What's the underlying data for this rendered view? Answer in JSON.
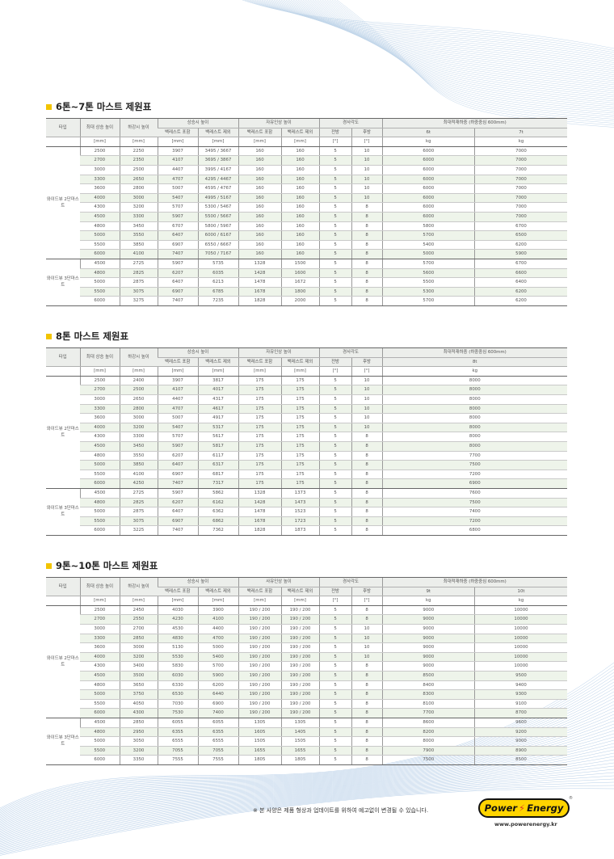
{
  "header_labels": {
    "type": "타입",
    "max_lift": "최대 상승 높이",
    "lowered": "하강시 높이",
    "raised": "상승시 높이",
    "free_lift": "자유인상 높이",
    "tilt": "경사각도",
    "load": "최대적재하중 (하중중심 600mm)",
    "with_backrest": "백레스트 포함",
    "without_backrest": "백레스트 제외",
    "front": "전방",
    "rear": "후방",
    "unit_mm": "[mm]",
    "unit_deg": "[°]",
    "unit_kg": "kg"
  },
  "tables": [
    {
      "title": "6톤~7톤 마스트 제원표",
      "free_lift_label": "자유인상 높이",
      "load_columns": [
        "6t",
        "7t"
      ],
      "groups": [
        {
          "type": "와이드뷰 2단마스트",
          "rows": [
            [
              "2500",
              "2250",
              "3907",
              "3495 / 3667",
              "160",
              "160",
              "5",
              "10",
              "6000",
              "7000"
            ],
            [
              "2700",
              "2350",
              "4107",
              "3695 / 3867",
              "160",
              "160",
              "5",
              "10",
              "6000",
              "7000"
            ],
            [
              "3000",
              "2500",
              "4407",
              "3995 / 4167",
              "160",
              "160",
              "5",
              "10",
              "6000",
              "7000"
            ],
            [
              "3300",
              "2650",
              "4707",
              "4295 / 4467",
              "160",
              "160",
              "5",
              "10",
              "6000",
              "7000"
            ],
            [
              "3600",
              "2800",
              "5007",
              "4595 / 4767",
              "160",
              "160",
              "5",
              "10",
              "6000",
              "7000"
            ],
            [
              "4000",
              "3000",
              "5407",
              "4995 / 5167",
              "160",
              "160",
              "5",
              "10",
              "6000",
              "7000"
            ],
            [
              "4300",
              "3200",
              "5707",
              "5300 / 5467",
              "160",
              "160",
              "5",
              "8",
              "6000",
              "7000"
            ],
            [
              "4500",
              "3300",
              "5907",
              "5500 / 5667",
              "160",
              "160",
              "5",
              "8",
              "6000",
              "7000"
            ],
            [
              "4800",
              "3450",
              "6707",
              "5800 / 5967",
              "160",
              "160",
              "5",
              "8",
              "5800",
              "6700"
            ],
            [
              "5000",
              "3550",
              "6407",
              "6000 / 6167",
              "160",
              "160",
              "5",
              "8",
              "5700",
              "6500"
            ],
            [
              "5500",
              "3850",
              "6907",
              "6550 / 6667",
              "160",
              "160",
              "5",
              "8",
              "5400",
              "6200"
            ],
            [
              "6000",
              "4100",
              "7407",
              "7050 / 7167",
              "160",
              "160",
              "5",
              "8",
              "5000",
              "5900"
            ]
          ]
        },
        {
          "type": "와이드뷰 3단마스트",
          "rows": [
            [
              "4500",
              "2725",
              "5907",
              "5735",
              "1328",
              "1500",
              "5",
              "8",
              "5700",
              "6700"
            ],
            [
              "4800",
              "2825",
              "6207",
              "6035",
              "1428",
              "1600",
              "5",
              "8",
              "5600",
              "6600"
            ],
            [
              "5000",
              "2875",
              "6407",
              "6213",
              "1478",
              "1672",
              "5",
              "8",
              "5500",
              "6400"
            ],
            [
              "5500",
              "3075",
              "6907",
              "6785",
              "1678",
              "1800",
              "5",
              "8",
              "5300",
              "6200"
            ],
            [
              "6000",
              "3275",
              "7407",
              "7235",
              "1828",
              "2000",
              "5",
              "8",
              "5700",
              "6200"
            ]
          ]
        }
      ]
    },
    {
      "title": "8톤 마스트 제원표",
      "free_lift_label": "자유인상 높이",
      "load_columns": [
        "8t"
      ],
      "groups": [
        {
          "type": "와이드뷰 2단마스트",
          "rows": [
            [
              "2500",
              "2400",
              "3907",
              "3817",
              "175",
              "175",
              "5",
              "10",
              "8000"
            ],
            [
              "2700",
              "2500",
              "4107",
              "4017",
              "175",
              "175",
              "5",
              "10",
              "8000"
            ],
            [
              "3000",
              "2650",
              "4407",
              "4317",
              "175",
              "175",
              "5",
              "10",
              "8000"
            ],
            [
              "3300",
              "2800",
              "4707",
              "4617",
              "175",
              "175",
              "5",
              "10",
              "8000"
            ],
            [
              "3600",
              "3000",
              "5007",
              "4917",
              "175",
              "175",
              "5",
              "10",
              "8000"
            ],
            [
              "4000",
              "3200",
              "5407",
              "5317",
              "175",
              "175",
              "5",
              "10",
              "8000"
            ],
            [
              "4300",
              "3300",
              "5707",
              "5617",
              "175",
              "175",
              "5",
              "8",
              "8000"
            ],
            [
              "4500",
              "3450",
              "5907",
              "5817",
              "175",
              "175",
              "5",
              "8",
              "8000"
            ],
            [
              "4800",
              "3550",
              "6207",
              "6117",
              "175",
              "175",
              "5",
              "8",
              "7700"
            ],
            [
              "5000",
              "3850",
              "6407",
              "6317",
              "175",
              "175",
              "5",
              "8",
              "7500"
            ],
            [
              "5500",
              "4100",
              "6907",
              "6817",
              "175",
              "175",
              "5",
              "8",
              "7200"
            ],
            [
              "6000",
              "4250",
              "7407",
              "7317",
              "175",
              "175",
              "5",
              "8",
              "6900"
            ]
          ]
        },
        {
          "type": "와이드뷰 3단마스트",
          "rows": [
            [
              "4500",
              "2725",
              "5907",
              "5862",
              "1328",
              "1373",
              "5",
              "8",
              "7600"
            ],
            [
              "4800",
              "2825",
              "6207",
              "6162",
              "1428",
              "1473",
              "5",
              "8",
              "7500"
            ],
            [
              "5000",
              "2875",
              "6407",
              "6362",
              "1478",
              "1523",
              "5",
              "8",
              "7400"
            ],
            [
              "5500",
              "3075",
              "6907",
              "6862",
              "1678",
              "1723",
              "5",
              "8",
              "7200"
            ],
            [
              "6000",
              "3225",
              "7407",
              "7362",
              "1828",
              "1873",
              "5",
              "8",
              "6800"
            ]
          ]
        }
      ]
    },
    {
      "title": "9톤~10톤 마스트 제원표",
      "free_lift_label": "사유인상 높이",
      "load_columns": [
        "9t",
        "10t"
      ],
      "groups": [
        {
          "type": "와이드뷰 2단마스트",
          "rows": [
            [
              "2500",
              "2450",
              "4030",
              "3900",
              "190 / 200",
              "190 / 200",
              "5",
              "8",
              "9000",
              "10000"
            ],
            [
              "2700",
              "2550",
              "4230",
              "4100",
              "190 / 200",
              "190 / 200",
              "5",
              "8",
              "9000",
              "10000"
            ],
            [
              "3000",
              "2700",
              "4530",
              "4400",
              "190 / 200",
              "190 / 200",
              "5",
              "10",
              "9000",
              "10000"
            ],
            [
              "3300",
              "2850",
              "4830",
              "4700",
              "190 / 200",
              "190 / 200",
              "5",
              "10",
              "9000",
              "10000"
            ],
            [
              "3600",
              "3000",
              "5130",
              "5000",
              "190 / 200",
              "190 / 200",
              "5",
              "10",
              "9000",
              "10000"
            ],
            [
              "4000",
              "3200",
              "5530",
              "5400",
              "190 / 200",
              "190 / 200",
              "5",
              "10",
              "9000",
              "10000"
            ],
            [
              "4300",
              "3400",
              "5830",
              "5700",
              "190 / 200",
              "190 / 200",
              "5",
              "8",
              "9000",
              "10000"
            ],
            [
              "4500",
              "3500",
              "6030",
              "5900",
              "190 / 200",
              "190 / 200",
              "5",
              "8",
              "8500",
              "9500"
            ],
            [
              "4800",
              "3650",
              "6330",
              "6200",
              "190 / 200",
              "190 / 200",
              "5",
              "8",
              "8400",
              "9400"
            ],
            [
              "5000",
              "3750",
              "6530",
              "6440",
              "190 / 200",
              "190 / 200",
              "5",
              "8",
              "8300",
              "9300"
            ],
            [
              "5500",
              "4050",
              "7030",
              "6900",
              "190 / 200",
              "190 / 200",
              "5",
              "8",
              "8100",
              "9100"
            ],
            [
              "6000",
              "4300",
              "7530",
              "7400",
              "190 / 200",
              "190 / 200",
              "5",
              "8",
              "7700",
              "8700"
            ]
          ]
        },
        {
          "type": "와이드뷰 3단마스트",
          "rows": [
            [
              "4500",
              "2850",
              "6055",
              "6055",
              "1305",
              "1305",
              "5",
              "8",
              "8600",
              "9600"
            ],
            [
              "4800",
              "2950",
              "6355",
              "6355",
              "1605",
              "1405",
              "5",
              "8",
              "8200",
              "9200"
            ],
            [
              "5000",
              "3050",
              "6555",
              "6555",
              "1505",
              "1505",
              "5",
              "8",
              "8000",
              "9000"
            ],
            [
              "5500",
              "3200",
              "7055",
              "7055",
              "1655",
              "1655",
              "5",
              "8",
              "7900",
              "8900"
            ],
            [
              "6000",
              "3350",
              "7555",
              "7555",
              "1805",
              "1805",
              "5",
              "8",
              "7500",
              "8500"
            ]
          ]
        }
      ]
    }
  ],
  "footer": {
    "note": "※ 본 사양은 제품 형상과 업데이트를 위하여 예고없이 변경될 수 있습니다.",
    "logo_text_left": "Power",
    "logo_text_right": "Energy",
    "url": "www.powerenergy.kr"
  },
  "colors": {
    "accent_square": "#f2c400",
    "row_alt": "#eef4ea",
    "header_bg": "#eceeeb",
    "logo_bg": "#ffd400",
    "logo_bolt": "#e03a1e"
  }
}
